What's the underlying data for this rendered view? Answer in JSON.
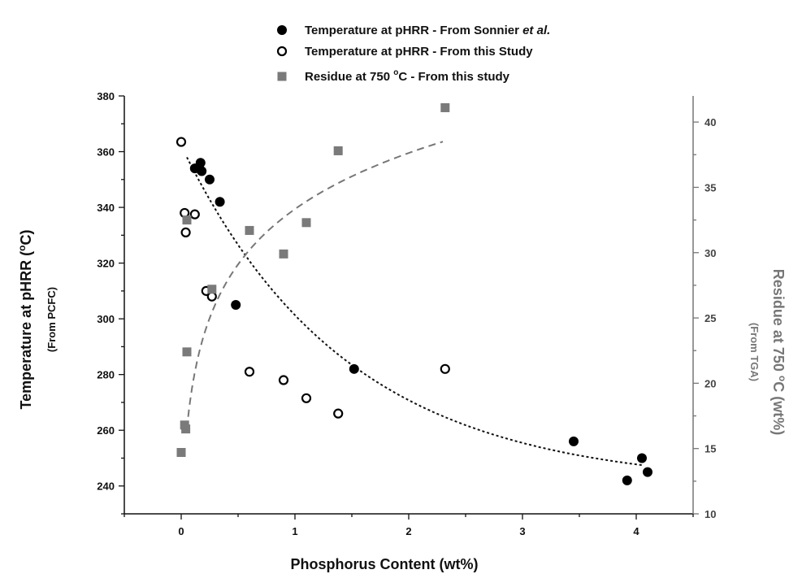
{
  "chart_data": {
    "type": "scatter",
    "xlabel": "Phosphorus Content (wt%)",
    "ylabel": "Temperature at pHRR (°C)",
    "ylabel_sub": "(From PCFC)",
    "y2label": "Residue at 750 °C (wt%)",
    "y2label_sub": "(From TGA)",
    "xlim": [
      -0.5,
      4.5
    ],
    "ylim": [
      230,
      380
    ],
    "y2lim": [
      10,
      42
    ],
    "x_ticks": [
      "0",
      "1",
      "2",
      "3",
      "4"
    ],
    "y_ticks": [
      "240",
      "260",
      "280",
      "300",
      "320",
      "340",
      "360",
      "380"
    ],
    "y2_ticks": [
      "10",
      "15",
      "20",
      "25",
      "30",
      "35",
      "40"
    ],
    "grid": false,
    "legend_position": "top-center",
    "series": [
      {
        "name": "Temperature at pHRR - From Sonnier et al.",
        "marker": "filled-circle",
        "axis": "left",
        "color": "#000000",
        "points": [
          [
            0.12,
            354
          ],
          [
            0.16,
            354
          ],
          [
            0.17,
            356
          ],
          [
            0.18,
            353
          ],
          [
            0.25,
            350
          ],
          [
            0.34,
            342
          ],
          [
            0.48,
            305
          ],
          [
            1.52,
            282
          ],
          [
            3.45,
            256
          ],
          [
            3.92,
            242
          ],
          [
            4.05,
            250
          ],
          [
            4.1,
            245
          ]
        ]
      },
      {
        "name": "Temperature at pHRR - From this Study",
        "marker": "open-circle",
        "axis": "left",
        "color": "#000000",
        "points": [
          [
            0.0,
            363.5
          ],
          [
            0.03,
            338
          ],
          [
            0.04,
            331
          ],
          [
            0.12,
            337.5
          ],
          [
            0.22,
            310
          ],
          [
            0.27,
            308
          ],
          [
            0.6,
            281
          ],
          [
            0.9,
            278
          ],
          [
            1.1,
            271.5
          ],
          [
            1.38,
            266
          ],
          [
            2.32,
            282
          ]
        ]
      },
      {
        "name": "Residue at 750 °C - From this study",
        "name_prefix": "Residue at 750",
        "name_sup": "o",
        "name_suffix": "C - From this study",
        "marker": "square",
        "axis": "right",
        "color": "#7a7a7a",
        "points": [
          [
            0.0,
            14.7
          ],
          [
            0.03,
            16.8
          ],
          [
            0.04,
            16.5
          ],
          [
            0.05,
            22.4
          ],
          [
            0.05,
            32.5
          ],
          [
            0.27,
            27.2
          ],
          [
            0.6,
            31.7
          ],
          [
            0.9,
            29.9
          ],
          [
            1.1,
            32.3
          ],
          [
            1.38,
            37.8
          ],
          [
            2.32,
            41.1
          ]
        ]
      }
    ],
    "trendlines": [
      {
        "axis": "left",
        "style": "dotted",
        "color": "#111111",
        "x_range": [
          0.05,
          4.05
        ],
        "y_start": 358,
        "y_end": 247.5
      },
      {
        "axis": "right",
        "style": "dashed",
        "color": "#777777",
        "x_range": [
          0.05,
          2.3
        ],
        "y_start": 16.5,
        "y_end": 38.5
      }
    ]
  }
}
